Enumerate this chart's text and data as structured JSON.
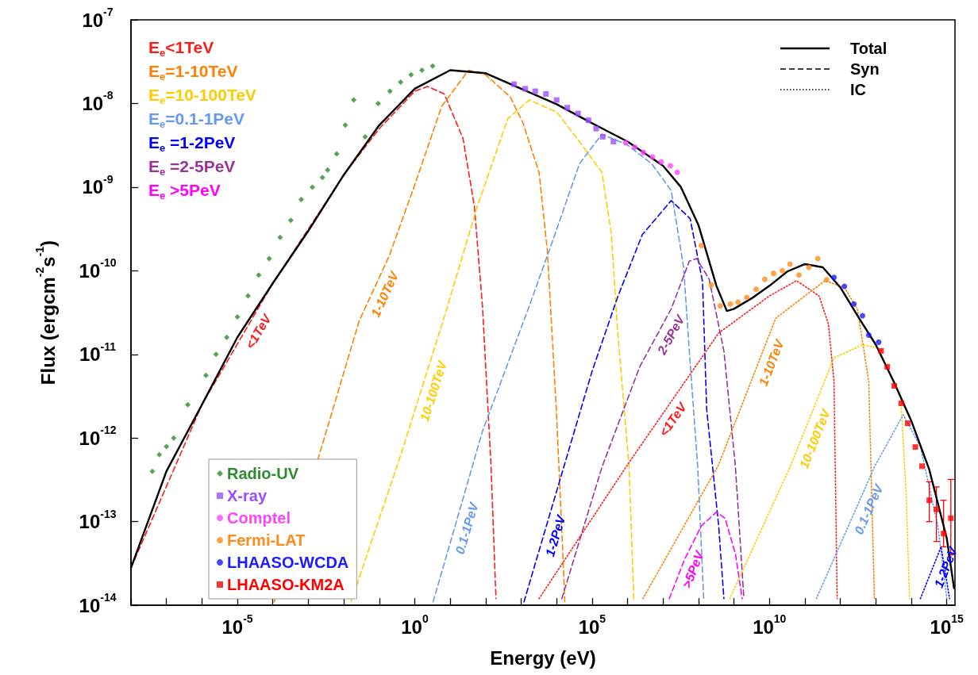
{
  "chart_data": {
    "type": "line",
    "xlabel": "Energy (eV)",
    "ylabel": "Flux (ergcm$^{-2}$s$^{-1}$)",
    "log": "xy",
    "legend": "bottom left",
    "xlim": [
      1e-08,
      1700000000000000.0
    ],
    "ylim": [
      1e-14,
      1e-07
    ],
    "xticks": [
      {
        "value": 1e-08,
        "label": null
      },
      {
        "value": 1e-07,
        "label": null
      },
      {
        "value": 1e-06,
        "label": null
      },
      {
        "value": 1e-05,
        "label": "10$^{-5}$"
      },
      {
        "value": 0.0001,
        "label": null
      },
      {
        "value": 0.001,
        "label": null
      },
      {
        "value": 0.01,
        "label": null
      },
      {
        "value": 0.1,
        "label": null
      },
      {
        "value": 1,
        "label": "10$^{0}$"
      },
      {
        "value": 10,
        "label": null
      },
      {
        "value": 100,
        "label": null
      },
      {
        "value": 1000.0,
        "label": null
      },
      {
        "value": 10000.0,
        "label": null
      },
      {
        "value": 100000.0,
        "label": "10$^{5}$"
      },
      {
        "value": 1000000.0,
        "label": null
      },
      {
        "value": 10000000.0,
        "label": null
      },
      {
        "value": 100000000.0,
        "label": null
      },
      {
        "value": 1000000000.0,
        "label": null
      },
      {
        "value": 10000000000.0,
        "label": "10$^{10}$"
      },
      {
        "value": 100000000000.0,
        "label": null
      },
      {
        "value": 1000000000000.0,
        "label": null
      },
      {
        "value": 10000000000000.0,
        "label": null
      },
      {
        "value": 100000000000000.0,
        "label": null
      },
      {
        "value": 1000000000000000.0,
        "label": "10$^{15}$"
      }
    ],
    "yticks": [
      {
        "value": 1e-14,
        "label": "10$^{-14}$"
      },
      {
        "value": 1e-13,
        "label": "10$^{-13}$"
      },
      {
        "value": 1e-12,
        "label": "10$^{-12}$"
      },
      {
        "value": 1e-11,
        "label": "10$^{-11}$"
      },
      {
        "value": 1e-10,
        "label": "10$^{-10}$"
      },
      {
        "value": 1e-09,
        "label": "10$^{-9}$"
      },
      {
        "value": 1e-08,
        "label": "10$^{-8}$"
      },
      {
        "value": 1e-07,
        "label": "10$^{-7}$"
      }
    ],
    "series": [
      {
        "name": "E$_{e}$<1TeV",
        "color": "#ff1a1a",
        "line_style": "dashed",
        "x": [
          1e-08,
          1e-06,
          0.0001,
          0.01,
          0.1,
          1,
          2.3,
          6.8,
          23,
          48,
          81,
          141,
          195
        ],
        "values": [
          2.8e-14,
          2.5e-12,
          7.1e-11,
          1.4e-09,
          5e-09,
          1.4e-08,
          1.6e-08,
          1.3e-08,
          3.8e-09,
          5.9e-10,
          3.8e-11,
          4.8e-13,
          1.2e-14
        ]
      },
      {
        "name": "E$_{e}$=1-10TeV",
        "color": "#ff8000",
        "line_style": "dashed",
        "x": [
          0.00011,
          0.0026,
          0.027,
          0.19,
          0.95,
          5.8,
          33,
          100,
          490,
          1100,
          3200,
          5500,
          9800,
          15000.0,
          17000.0
        ],
        "values": [
          1.1e-14,
          8.9e-13,
          2.5e-11,
          1.5e-10,
          1e-09,
          9.3e-09,
          2.5e-08,
          2.2e-08,
          1.2e-08,
          6e-09,
          1.5e-09,
          1.7e-10,
          2.2e-12,
          4.1e-14,
          1.1e-14
        ]
      },
      {
        "name": "E$_{e}$=10-100TeV",
        "color": "#ffcc00",
        "line_style": "dashed",
        "x": [
          0.016,
          0.4,
          6.8,
          56,
          420,
          1700,
          10000.0,
          44000.0,
          190000.0,
          350000.0,
          520000.0,
          1100000.0,
          1500000.0
        ],
        "values": [
          1.1e-14,
          6.2e-13,
          2.8e-11,
          5.6e-10,
          6.6e-09,
          1.1e-08,
          7.9e-09,
          3.5e-09,
          1.5e-09,
          2.7e-10,
          2e-11,
          4.5e-13,
          1.2e-14
        ]
      },
      {
        "name": "E$_{e}$=0.1-1PeV",
        "color": "#6699ee",
        "line_style": "dashed",
        "x": [
          3.3,
          81,
          1700,
          8900,
          44000.0,
          190000.0,
          980000.0,
          4800000.0,
          17000000.0,
          38000000.0,
          55000000.0,
          95000000.0,
          140000000.0
        ],
        "values": [
          1.1e-14,
          1.2e-12,
          3.8e-11,
          2.7e-10,
          1.9e-09,
          4.3e-09,
          3.2e-09,
          1.9e-09,
          9.1e-10,
          1.1e-10,
          1.1e-11,
          4.5e-13,
          1.2e-14
        ]
      },
      {
        "name": "E$_{e}$ =1-2PeV",
        "color": "#0000ff",
        "line_style": "dashed",
        "x": [
          1200,
          12000.0,
          100000.0,
          520000.0,
          2600000.0,
          17000000.0,
          58000000.0,
          130000000.0,
          170000000.0,
          370000000.0,
          520000000.0
        ],
        "values": [
          1.1e-14,
          3e-13,
          6.3e-12,
          4.8e-11,
          2.7e-10,
          6.9e-10,
          4.2e-10,
          7.4e-11,
          2.2e-12,
          8.9e-14,
          1.2e-14
        ]
      },
      {
        "name": "E$_{e}$ =2-5PeV",
        "color": "#993399",
        "line_style": "dashed",
        "x": [
          14000.0,
          190000.0,
          2200000.0,
          17000000.0,
          55000000.0,
          89000000.0,
          200000000.0,
          520000000.0,
          1100000000.0,
          1900000000.0
        ],
        "values": [
          1.2e-14,
          4.5e-13,
          7.1e-12,
          3.5e-11,
          1.3e-10,
          1.4e-10,
          7.9e-11,
          1.1e-11,
          4.5e-13,
          1.2e-14
        ]
      },
      {
        "name": "E$_{e}$ >5PeV",
        "color": "#ff00ff",
        "line_style": "dashed",
        "x": [
          15000000.0,
          40000000.0,
          120000000.0,
          320000000.0,
          560000000.0,
          1100000000.0,
          1700000000.0
        ],
        "values": [
          1.2e-14,
          3.5e-14,
          8.9e-14,
          1.3e-13,
          1.1e-13,
          4.1e-14,
          1.2e-14
        ]
      },
      {
        "color": "#ff1a1a",
        "line_style": "dotted",
        "x": [
          3200,
          1100000.0,
          370000000.0,
          10000000000.0,
          58000000000.0,
          250000000000.0,
          460000000000.0,
          660000000000.0,
          810000000000.0
        ],
        "values": [
          1.2e-14,
          5.1e-13,
          1.8e-11,
          5e-11,
          7.6e-11,
          5e-11,
          2.3e-11,
          4.8e-12,
          1.2e-14
        ]
      },
      {
        "color": "#ff8000",
        "line_style": "dotted",
        "x": [
          2700000.0,
          370000000.0,
          15000000000.0,
          100000000000.0,
          370000000000.0,
          1300000000000.0,
          3000000000000.0,
          6300000000000.0,
          9100000000000.0
        ],
        "values": [
          1.2e-14,
          4.8e-13,
          2.7e-11,
          5e-11,
          7.6e-11,
          6.3e-11,
          3.5e-11,
          4.8e-12,
          1.2e-14
        ]
      },
      {
        "color": "#ffcc00",
        "line_style": "dotted",
        "x": [
          760000000.0,
          38000000000.0,
          660000000000.0,
          4200000000000.0,
          11000000000000.0,
          50000000000000.0,
          72000000000000.0,
          89000000000000.0
        ],
        "values": [
          1.2e-14,
          4.5e-13,
          9.1e-12,
          1.3e-11,
          1.2e-11,
          3.2e-12,
          2e-13,
          1.2e-14
        ]
      },
      {
        "color": "#6699ee",
        "line_style": "dotted",
        "x": [
          210000000000.0,
          9100000000000.0,
          59000000000000.0,
          180000000000000.0,
          560000000000000.0,
          1000000000000000.0
        ],
        "values": [
          1.2e-14,
          4.5e-13,
          1.9e-12,
          7.9e-13,
          8.9e-14,
          1.2e-14
        ]
      },
      {
        "color": "#0000ff",
        "line_style": "dotted",
        "x": [
          180000000000000.0,
          690000000000000.0,
          1200000000000000.0
        ],
        "values": [
          1.2e-14,
          5e-14,
          1.2e-14
        ]
      },
      {
        "name": "Total",
        "color": "#000000",
        "line_style": "solid",
        "x": [
          1e-08,
          1e-07,
          1e-06,
          1e-05,
          0.0001,
          0.001,
          0.01,
          0.1,
          1,
          10,
          100,
          1000,
          10000.0,
          100000.0,
          1000000.0,
          10000000.0,
          32000000.0,
          100000000.0,
          320000000.0,
          630000000.0,
          1000000000.0,
          3200000000.0,
          10000000000.0,
          32000000000.0,
          100000000000.0,
          320000000000.0,
          1000000000000.0,
          3200000000000.0,
          10000000000000.0,
          32000000000000.0,
          100000000000000.0,
          320000000000000.0,
          1000000000000000.0,
          1600000000000000.0
        ],
        "values": [
          2.8e-14,
          4e-13,
          2.5e-12,
          1.6e-11,
          7.1e-11,
          3e-10,
          1.4e-09,
          5.5e-09,
          1.5e-08,
          2.5e-08,
          2.3e-08,
          1.5e-08,
          9.8e-09,
          5.8e-09,
          3.5e-09,
          1.8e-09,
          1e-09,
          3.5e-10,
          6.6e-11,
          3.3e-11,
          3.5e-11,
          4.7e-11,
          6.6e-11,
          9.8e-11,
          1.2e-10,
          1.1e-10,
          6.3e-11,
          2.8e-11,
          1.3e-11,
          4.7e-12,
          1.6e-12,
          4.2e-13,
          6.3e-14,
          1.6e-14
        ]
      },
      {
        "name": "Syn",
        "color": "#000000",
        "line_style": "dashed"
      },
      {
        "name": "IC",
        "color": "#000000",
        "line_style": "dotted"
      },
      {
        "name": "Radio-UV",
        "type": "scatter",
        "marker": "diamond",
        "color": "#2e8b2e",
        "x": [
          4e-08,
          6.3e-08,
          1e-07,
          1.6e-07,
          4e-07,
          1.3e-06,
          2.5e-06,
          5e-06,
          1e-05,
          2e-05,
          4e-05,
          7.9e-05,
          0.00016,
          0.00032,
          0.00063,
          0.0013,
          0.0025,
          0.0035,
          0.0063,
          0.011,
          0.019,
          0.04,
          0.093,
          0.2,
          0.4,
          0.79,
          1.6,
          3.2
        ],
        "values": [
          4e-13,
          6.3e-13,
          7.9e-13,
          1e-12,
          2.5e-12,
          5.6e-12,
          1e-11,
          1.6e-11,
          2.8e-11,
          5e-11,
          8.9e-11,
          1.4e-10,
          2.5e-10,
          4e-10,
          7.1e-10,
          1e-09,
          1.3e-09,
          1.6e-09,
          2.5e-09,
          5.5e-09,
          1.1e-08,
          4e-09,
          1e-08,
          1.4e-08,
          1.8e-08,
          2.2e-08,
          2.5e-08,
          2.8e-08
        ]
      },
      {
        "name": "X-ray",
        "type": "scatter",
        "marker": "square",
        "color": "#9b4dff",
        "x": [
          630,
          1300,
          2500,
          5000,
          10000.0,
          20000.0,
          40000.0,
          79000.0,
          130000.0,
          200000.0,
          400000.0
        ],
        "values": [
          1.7e-08,
          1.5e-08,
          1.4e-08,
          1.3e-08,
          1.1e-08,
          8.9e-09,
          7.6e-09,
          6.3e-09,
          5e-09,
          4e-09,
          3.5e-09
        ]
      },
      {
        "name": "Comptel",
        "type": "scatter",
        "marker": "circle",
        "color": "#ff44ff",
        "x": [
          890000.0,
          1600000.0,
          2800000.0,
          5000000.0,
          8900000.0,
          16000000.0,
          25000000.0
        ],
        "values": [
          3.4e-09,
          3e-09,
          2.6e-09,
          2.3e-09,
          2e-09,
          1.8e-09,
          1.5e-09
        ]
      },
      {
        "name": "Fermi-LAT",
        "type": "scatter",
        "marker": "circle",
        "color": "#ff8c1a",
        "x": [
          120000000.0,
          230000000.0,
          410000000.0,
          790000000.0,
          1300000000.0,
          2300000000.0,
          4200000000.0,
          7400000000.0,
          13000000000.0,
          23000000000.0,
          38000000000.0,
          68000000000.0,
          130000000000.0,
          230000000000.0,
          410000000000.0
        ],
        "values": [
          2e-10,
          6.8e-11,
          3.8e-11,
          4e-11,
          4.2e-11,
          4.8e-11,
          6e-11,
          7.9e-11,
          9.3e-11,
          1e-10,
          1.2e-10,
          8.9e-11,
          1.1e-10,
          1.4e-10,
          7.8e-11
        ]
      },
      {
        "name": "LHAASO-WCDA",
        "type": "scatter",
        "marker": "circle",
        "color": "#1a1aff",
        "x": [
          660000000000.0,
          1300000000000.0,
          2400000000000.0,
          4200000000000.0,
          6300000000000.0,
          12000000000000.0
        ],
        "values": [
          8.3e-11,
          6.5e-11,
          4e-11,
          2.9e-11,
          1.7e-11,
          1.4e-11
        ]
      },
      {
        "name": "LHAASO-KM2A",
        "type": "scatter",
        "marker": "square",
        "color": "#ff0000",
        "x": [
          14000000000000.0,
          21000000000000.0,
          33000000000000.0,
          52000000000000.0,
          79000000000000.0,
          130000000000000.0,
          200000000000000.0,
          320000000000000.0,
          510000000000000.0,
          810000000000000.0,
          1300000000000000.0
        ],
        "values": [
          1.1e-11,
          7.1e-12,
          4.2e-12,
          2.6e-12,
          1.5e-12,
          7.8e-13,
          4.6e-13,
          1.8e-13,
          1.4e-13,
          7.2e-14,
          1.1e-13
        ],
        "errors": [
          null,
          null,
          null,
          null,
          null,
          null,
          null,
          [
            1e-13,
            3e-13
          ],
          [
            5.8e-14,
            2.6e-13
          ],
          [
            5e-14,
            1.8e-13
          ],
          [
            4e-14,
            3.2e-13
          ]
        ]
      }
    ],
    "annotations": [
      {
        "text": "<1TeV",
        "x": 2e-05,
        "y": 2.2e-11
      },
      {
        "text": "1-10TeV",
        "x": 0.071,
        "y": 6e-11
      },
      {
        "text": "10-100TeV",
        "x": 1.6,
        "y": 4e-12
      },
      {
        "text": "0.1-1PeV",
        "x": 14,
        "y": 9.1e-14
      },
      {
        "text": "1-2PeV",
        "x": 4400,
        "y": 7.4e-14
      },
      {
        "text": "2-5PeV",
        "x": 8500000.0,
        "y": 2e-11
      },
      {
        "text": ">5PeV",
        "x": 34000000.0,
        "y": 3e-14
      },
      {
        "text": "<1TeV",
        "x": 10000000.0,
        "y": 2e-12
      },
      {
        "text": "1-10TeV",
        "x": 5500000000.0,
        "y": 8.9e-12
      },
      {
        "text": "10-100TeV",
        "x": 93000000000.0,
        "y": 1.1e-12
      },
      {
        "text": "0.1-1PeV",
        "x": 3100000000000.0,
        "y": 1.6e-13
      },
      {
        "text": "1-2PeV",
        "x": 460000000000000.0,
        "y": 3.2e-14
      }
    ]
  }
}
